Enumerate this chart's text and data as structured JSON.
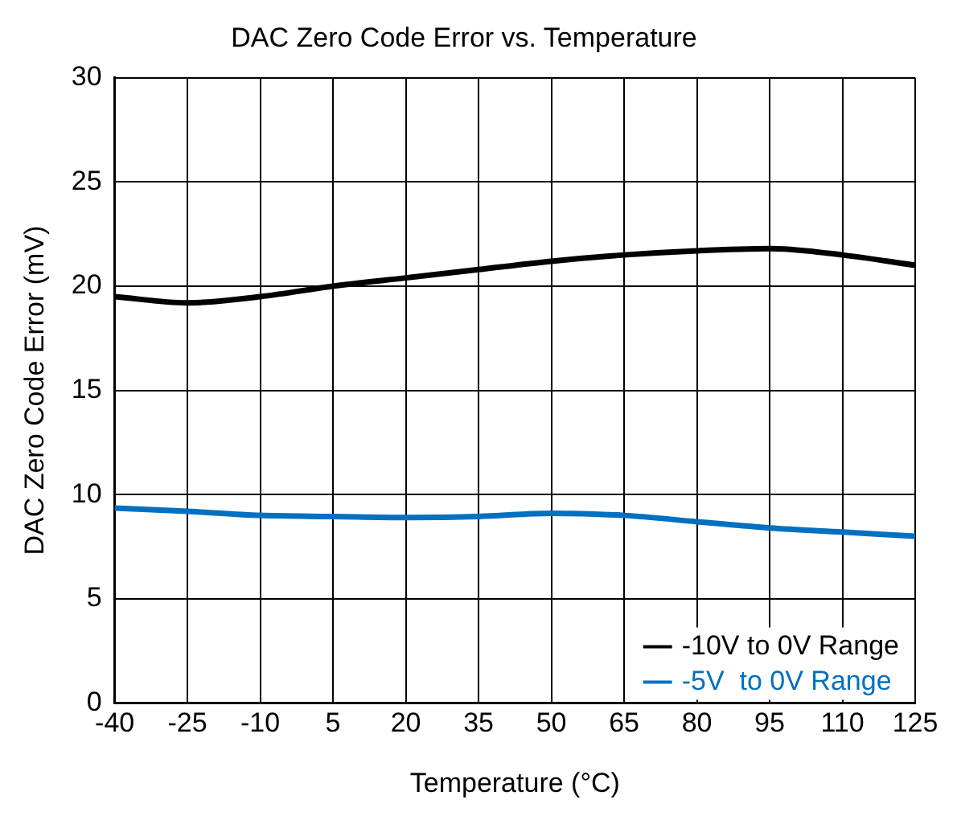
{
  "chart_data": {
    "type": "line",
    "title": "DAC Zero Code Error vs. Temperature",
    "xlabel": "Temperature (°C)",
    "ylabel": "DAC Zero Code Error (mV)",
    "x": [
      -40,
      -25,
      -10,
      5,
      20,
      35,
      50,
      65,
      80,
      95,
      110,
      125
    ],
    "series": [
      {
        "name": "-10V to 0V Range",
        "color": "#000000",
        "values": [
          19.5,
          19.2,
          19.5,
          20.0,
          20.4,
          20.8,
          21.2,
          21.5,
          21.7,
          21.8,
          21.5,
          21.0
        ]
      },
      {
        "name": "-5V  to 0V Range",
        "color": "#0070c0",
        "values": [
          9.35,
          9.2,
          9.0,
          8.95,
          8.9,
          8.95,
          9.1,
          9.0,
          8.7,
          8.4,
          8.2,
          8.0
        ]
      }
    ],
    "xlim": [
      -40,
      125
    ],
    "xticks": [
      -40,
      -25,
      -10,
      5,
      20,
      35,
      50,
      65,
      80,
      95,
      110,
      125
    ],
    "ylim": [
      0,
      30
    ],
    "yticks": [
      0,
      5,
      10,
      15,
      20,
      25,
      30
    ],
    "grid": true,
    "legend": "bottom right",
    "marker": "none",
    "line_style": "solid"
  }
}
